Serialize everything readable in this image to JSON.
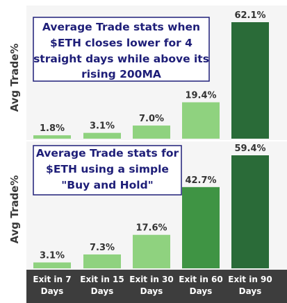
{
  "chart_data": [
    {
      "type": "bar",
      "title_lines": [
        "Average Trade stats when",
        "$ETH closes lower for 4",
        "straight days while above its",
        "rising 200MA"
      ],
      "ylabel": "Avg Trade%",
      "categories": [
        "Exit in 7 Days",
        "Exit in 15 Days",
        "Exit in 30 Days",
        "Exit in 60 Days",
        "Exit in 90 Days"
      ],
      "values": [
        1.8,
        3.1,
        7.0,
        19.4,
        62.1
      ],
      "value_labels": [
        "1.8%",
        "3.1%",
        "7.0%",
        "19.4%",
        "62.1%"
      ],
      "ylim": [
        0,
        66
      ],
      "grid": false
    },
    {
      "type": "bar",
      "title_lines": [
        "Average Trade stats for",
        "$ETH using a simple",
        "\"Buy and Hold\""
      ],
      "ylabel": "Avg Trade%",
      "categories": [
        "Exit in 7 Days",
        "Exit in 15 Days",
        "Exit in 30 Days",
        "Exit in 60 Days",
        "Exit in 90 Days"
      ],
      "values": [
        3.1,
        7.3,
        17.6,
        42.7,
        59.4
      ],
      "value_labels": [
        "3.1%",
        "7.3%",
        "17.6%",
        "42.7%",
        "59.4%"
      ],
      "ylim": [
        0,
        63
      ],
      "grid": false
    }
  ],
  "x_tick_labels": [
    [
      "Exit in 7",
      "Days"
    ],
    [
      "Exit in 15",
      "Days"
    ],
    [
      "Exit in 30",
      "Days"
    ],
    [
      "Exit in 60",
      "Days"
    ],
    [
      "Exit in 90",
      "Days"
    ]
  ],
  "colors": {
    "bar_light": "#8fd27f",
    "bar_mid": "#3f9444",
    "bar_dark": "#2a6b38",
    "panel_bg": "#f5f5f5",
    "axis_bg": "#3d3d3d",
    "title_border": "#1e1e78",
    "title_text": "#1e1e78"
  }
}
